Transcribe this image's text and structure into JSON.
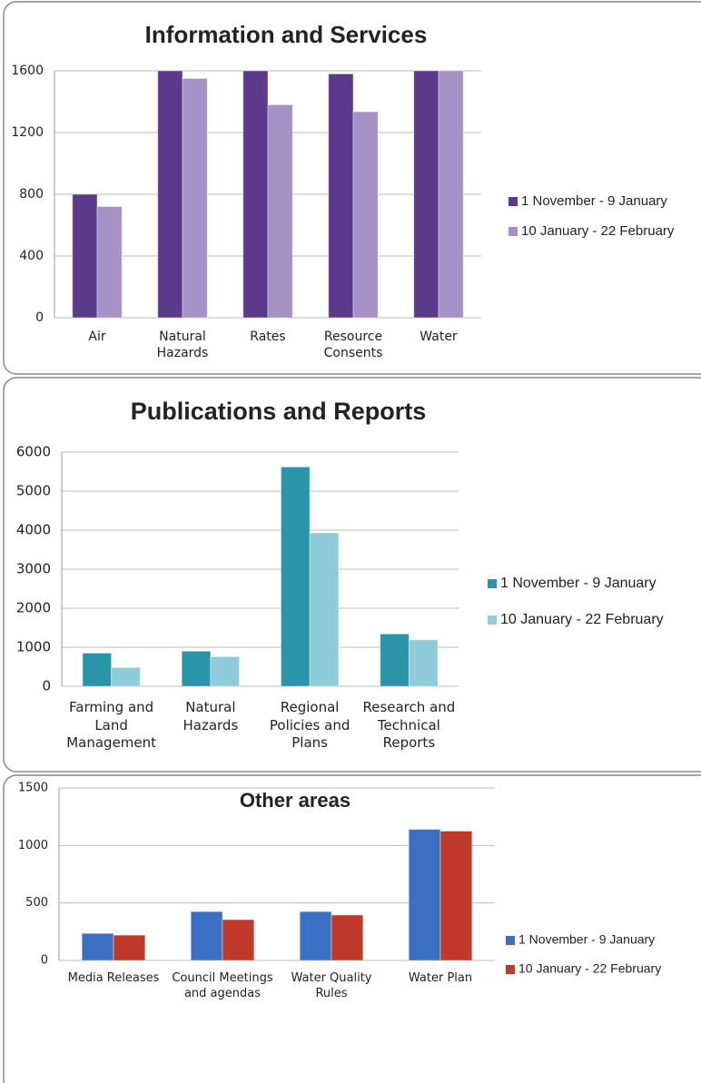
{
  "chart_data": [
    {
      "type": "bar",
      "title": "Information and Services",
      "categories": [
        "Air",
        "Natural Hazards",
        "Rates",
        "Resource Consents",
        "Water"
      ],
      "series": [
        {
          "name": "1 November - 9 January",
          "color": "#5b3a8c",
          "values": [
            800,
            1600,
            1600,
            1580,
            1600
          ]
        },
        {
          "name": "10 January - 22 February",
          "color": "#a591c4",
          "values": [
            720,
            1550,
            1380,
            1335,
            1600
          ]
        }
      ],
      "ylim": [
        0,
        1600
      ],
      "yticks": [
        0,
        400,
        800,
        1200,
        1600
      ],
      "grid": true,
      "legend": "right"
    },
    {
      "type": "bar",
      "title": "Publications and Reports",
      "categories": [
        "Farming and Land Management",
        "Natural Hazards",
        "Regional Policies and Plans",
        "Research and Technical Reports"
      ],
      "series": [
        {
          "name": "1 November - 9 January",
          "color": "#2a95a8",
          "values": [
            850,
            900,
            5620,
            1340
          ]
        },
        {
          "name": "10 January - 22 February",
          "color": "#8fcbd8",
          "values": [
            480,
            760,
            3930,
            1190
          ]
        }
      ],
      "ylim": [
        0,
        6000
      ],
      "yticks": [
        0,
        1000,
        2000,
        3000,
        4000,
        5000,
        6000
      ],
      "grid": true,
      "legend": "right"
    },
    {
      "type": "bar",
      "title": "Other areas",
      "categories": [
        "Media Releases",
        "Council Meetings and agendas",
        "Water Quality Rules",
        "Water Plan"
      ],
      "series": [
        {
          "name": "1 November - 9 January",
          "color": "#3b6fc4",
          "values": [
            235,
            425,
            425,
            1140
          ]
        },
        {
          "name": "10 January - 22 February",
          "color": "#c0392b",
          "values": [
            220,
            355,
            395,
            1125
          ]
        }
      ],
      "ylim": [
        0,
        1500
      ],
      "yticks": [
        0,
        500,
        1000,
        1500
      ],
      "grid": true,
      "legend": "right"
    }
  ]
}
